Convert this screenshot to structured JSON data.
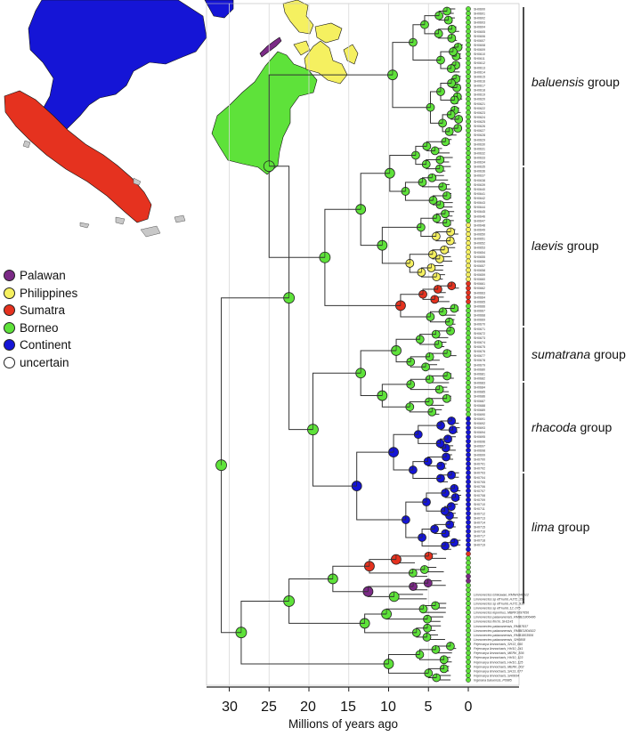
{
  "chart_data": {
    "type": "tree",
    "xlabel": "Millions of years ago",
    "x_axis_reversed": true,
    "x_range": [
      33,
      0
    ],
    "x_ticks": [
      "30",
      "25",
      "20",
      "15",
      "10",
      "5",
      "0"
    ],
    "gridlines": [
      30,
      25,
      20,
      15,
      10,
      5
    ],
    "legend": [
      {
        "label": "Palawan",
        "color": "#7b2a86"
      },
      {
        "label": "Philippines",
        "color": "#f5f060"
      },
      {
        "label": "Sumatra",
        "color": "#e5321f"
      },
      {
        "label": "Borneo",
        "color": "#5ee23a"
      },
      {
        "label": "Continent",
        "color": "#1515d6"
      },
      {
        "label": "uncertain",
        "color": "#ffffff"
      }
    ],
    "groups": [
      {
        "name": "baluensis",
        "suffix": "group"
      },
      {
        "name": "laevis",
        "suffix": "group"
      },
      {
        "name": "sumatrana",
        "suffix": "group"
      },
      {
        "name": "rhacoda",
        "suffix": "group"
      },
      {
        "name": "lima",
        "suffix": "group"
      }
    ],
    "labelled_tips": [
      "Limnonectes ishikawae_RMNH346612",
      "Limnonectes sp eff kuhli_HJT2_155",
      "Limnonectes sp eff kuhli_HJT2_918",
      "Limnonectes sp eff kuhli_12_075",
      "Limnonectes leporinus_MBRF1097656",
      "Limnonectes palawanensis_RMBE1806486",
      "Limnonectes finchi_SH1141",
      "Limnonectes palawanensis_RMB7837",
      "Limnonectes palawanensis_RMBE1804922",
      "Limnonectes palawanensis_RMB1803506",
      "Limnonectes palawanensis_SH0808",
      "Fejervarya limnocharis_SH13_060",
      "Fejervarya limnocharis_HH10_241",
      "Fejervarya limnocharis_MERK_836",
      "Fejervarya limnocharis_HH10_123",
      "Fejervarya limnocharis_HH10_125",
      "Fejervarya limnocharis_MERK_002",
      "Fejervarya limnocharis_SH13_077",
      "Fejervarya limnocharis_SH0834",
      "Ingerana baluensis_P0985"
    ]
  }
}
